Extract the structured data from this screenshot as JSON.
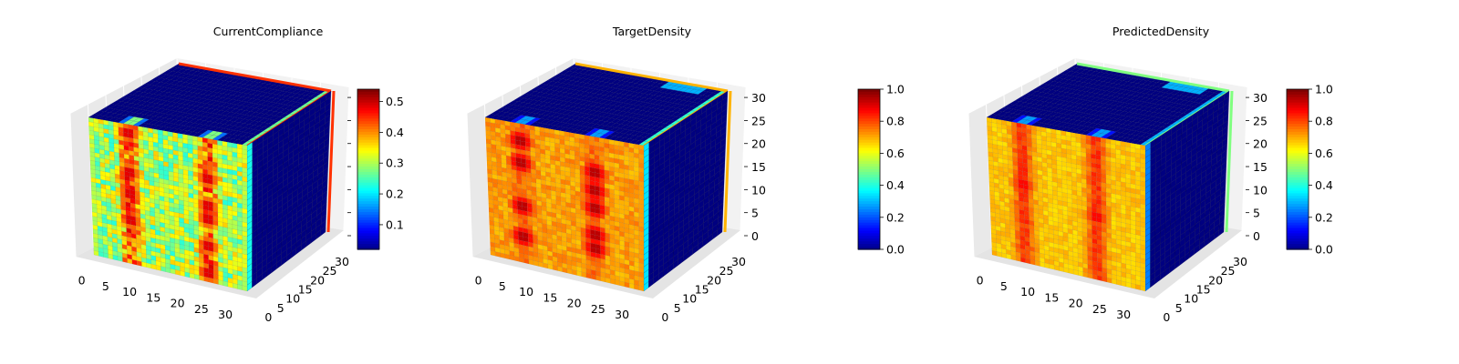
{
  "chart_data": [
    {
      "type": "voxel",
      "title": "CurrentCompliance",
      "grid_size": [
        32,
        32,
        32
      ],
      "x_ticks": [
        "0",
        "5",
        "10",
        "15",
        "20",
        "25",
        "30"
      ],
      "y_ticks": [
        "0",
        "5",
        "10",
        "15",
        "20",
        "25",
        "30"
      ],
      "z_ticks": [],
      "colormap": "jet",
      "colorbar": {
        "range": [
          0.02,
          0.54
        ],
        "ticks": [
          "0.1",
          "0.2",
          "0.3",
          "0.4",
          "0.5"
        ],
        "tick_values": [
          0.1,
          0.2,
          0.3,
          0.4,
          0.5
        ]
      },
      "front_face": {
        "base": 0.3,
        "variation": 0.07,
        "column_centers": [
          8,
          24
        ],
        "column_value": 0.45,
        "hot_spots": [
          [
            8,
            2
          ],
          [
            8,
            11
          ],
          [
            8,
            16
          ],
          [
            8,
            22
          ],
          [
            24,
            9
          ],
          [
            24,
            15
          ],
          [
            24,
            18
          ],
          [
            24,
            24
          ],
          [
            24,
            30
          ]
        ],
        "hot_value": 0.54
      },
      "top_face_value": 0.02,
      "side_face_value": 0.02,
      "edge_value": 0.45
    },
    {
      "type": "voxel",
      "title": "TargetDensity",
      "grid_size": [
        32,
        32,
        32
      ],
      "x_ticks": [
        "0",
        "5",
        "10",
        "15",
        "20",
        "25",
        "30"
      ],
      "y_ticks": [
        "0",
        "5",
        "10",
        "15",
        "20",
        "25",
        "30"
      ],
      "z_ticks": [
        "0",
        "5",
        "10",
        "15",
        "20",
        "25",
        "30"
      ],
      "colormap": "jet",
      "colorbar": {
        "range": [
          0.0,
          1.0
        ],
        "ticks": [
          "0.0",
          "0.2",
          "0.4",
          "0.6",
          "0.8",
          "1.0"
        ],
        "tick_values": [
          0.0,
          0.2,
          0.4,
          0.6,
          0.8,
          1.0
        ]
      },
      "front_face": {
        "base": 0.72,
        "variation": 0.04,
        "column_centers": [
          7,
          22
        ],
        "column_value": 0.78,
        "hot_spots": [
          [
            7,
            26
          ],
          [
            7,
            19
          ],
          [
            7,
            9
          ],
          [
            7,
            4
          ],
          [
            22,
            25
          ],
          [
            22,
            22
          ],
          [
            22,
            16
          ],
          [
            22,
            12
          ],
          [
            22,
            8
          ]
        ],
        "hot_value": 1.0
      },
      "top_face_value": 0.0,
      "side_face_value": 0.0,
      "edge_value": 0.7
    },
    {
      "type": "voxel",
      "title": "PredictedDensity",
      "grid_size": [
        32,
        32,
        32
      ],
      "x_ticks": [
        "0",
        "5",
        "10",
        "15",
        "20",
        "25",
        "30"
      ],
      "y_ticks": [
        "0",
        "5",
        "10",
        "15",
        "20",
        "25",
        "30"
      ],
      "z_ticks": [
        "0",
        "5",
        "10",
        "15",
        "20",
        "25",
        "30"
      ],
      "colormap": "jet",
      "colorbar": {
        "range": [
          0.0,
          1.0
        ],
        "ticks": [
          "0.0",
          "0.2",
          "0.4",
          "0.6",
          "0.8",
          "1.0"
        ],
        "tick_values": [
          0.0,
          0.2,
          0.4,
          0.6,
          0.8,
          1.0
        ]
      },
      "front_face": {
        "base": 0.68,
        "variation": 0.03,
        "column_centers": [
          7,
          22
        ],
        "column_value": 0.85,
        "hot_spots": [
          [
            7,
            14
          ],
          [
            22,
            18
          ]
        ],
        "hot_value": 0.92
      },
      "top_face_value": 0.0,
      "side_face_value": 0.0,
      "edge_value": 0.5
    }
  ]
}
